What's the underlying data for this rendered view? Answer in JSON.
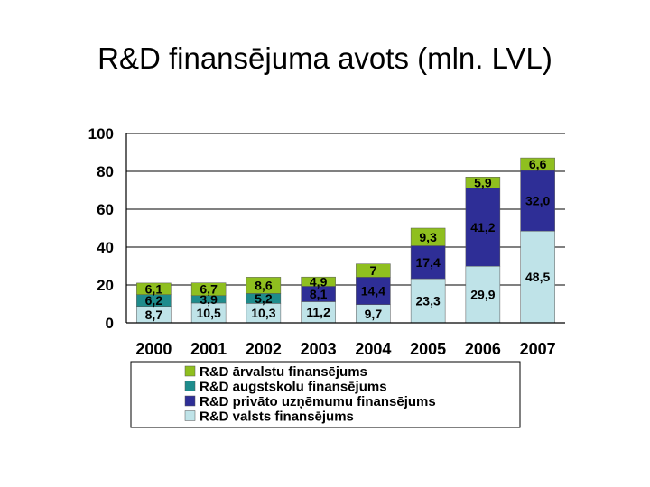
{
  "slide": {
    "title": "R&D finansējuma avots (mln. LVL)"
  },
  "chart_data": {
    "type": "bar",
    "stacked": true,
    "categories": [
      "2000",
      "2001",
      "2002",
      "2003",
      "2004",
      "2005",
      "2006",
      "2007"
    ],
    "series": [
      {
        "name": "R&D valsts finansējums",
        "color": "#bfe3e8",
        "values": [
          8.7,
          10.5,
          10.3,
          11.2,
          9.7,
          23.3,
          29.9,
          48.5
        ],
        "labels": [
          "8,7",
          "10,5",
          "10,3",
          "11,2",
          "9,7",
          "23,3",
          "29,9",
          "48,5"
        ]
      },
      {
        "name": "R&D augstskolu finansējums",
        "color": "#1e8c8c",
        "values": [
          6.2,
          3.9,
          5.2,
          0,
          0,
          0,
          0,
          0
        ],
        "labels": [
          "6,2",
          "3,9",
          "5,2",
          "",
          "",
          "",
          "",
          ""
        ]
      },
      {
        "name": "R&D privāto uzņēmumu finansējums",
        "color": "#2e2e96",
        "values": [
          0,
          0,
          0,
          8.1,
          14.4,
          17.4,
          41.2,
          32.0
        ],
        "labels": [
          "",
          "",
          "",
          "8,1",
          "14,4",
          "17,4",
          "41,2",
          "32,0"
        ]
      },
      {
        "name": "R&D ārvalstu finansējums",
        "color": "#8fbf1f",
        "values": [
          6.1,
          6.7,
          8.6,
          4.9,
          7.0,
          9.3,
          5.9,
          6.6
        ],
        "labels": [
          "6,1",
          "6,7",
          "8,6",
          "4,9",
          "7",
          "9,3",
          "5,9",
          "6,6"
        ]
      }
    ],
    "ylim": [
      0,
      100
    ],
    "yticks": [
      "0",
      "20",
      "40",
      "60",
      "80",
      "100"
    ],
    "legend_order": [
      3,
      1,
      2,
      0
    ],
    "legend_position": "bottom",
    "grid": true
  }
}
